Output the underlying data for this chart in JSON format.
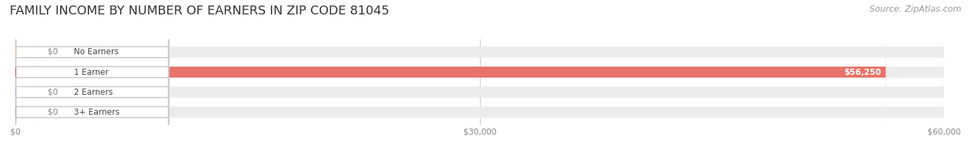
{
  "title": "FAMILY INCOME BY NUMBER OF EARNERS IN ZIP CODE 81045",
  "source": "Source: ZipAtlas.com",
  "categories": [
    "No Earners",
    "1 Earner",
    "2 Earners",
    "3+ Earners"
  ],
  "values": [
    0,
    56250,
    0,
    0
  ],
  "bar_colors": [
    "#f5c89a",
    "#e8736a",
    "#a8bfe0",
    "#c9a8d4"
  ],
  "label_colors": [
    "#f5c89a",
    "#e8736a",
    "#a8bfe0",
    "#c9a8d4"
  ],
  "background_color": "#ffffff",
  "bar_bg_color": "#ececec",
  "xlim": [
    0,
    60000
  ],
  "xticks": [
    0,
    30000,
    60000
  ],
  "xtick_labels": [
    "$0",
    "$30,000",
    "$60,000"
  ],
  "title_fontsize": 13,
  "source_fontsize": 9,
  "bar_height": 0.55,
  "value_label_0": "$0",
  "value_label_1": "$56,250",
  "value_label_2": "$0",
  "value_label_3": "$0"
}
